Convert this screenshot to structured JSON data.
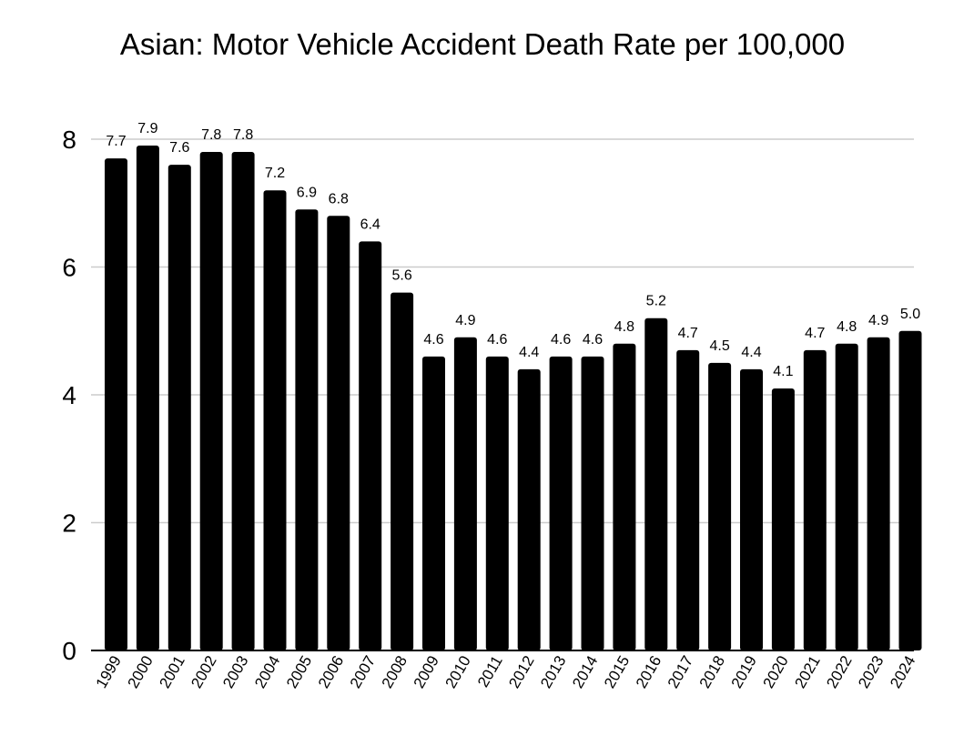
{
  "chart_data": {
    "type": "bar",
    "title": "Asian: Motor Vehicle Accident Death Rate per 100,000",
    "xlabel": "",
    "ylabel": "",
    "categories": [
      "1999",
      "2000",
      "2001",
      "2002",
      "2003",
      "2004",
      "2005",
      "2006",
      "2007",
      "2008",
      "2009",
      "2010",
      "2011",
      "2012",
      "2013",
      "2014",
      "2015",
      "2016",
      "2017",
      "2018",
      "2019",
      "2020",
      "2021",
      "2022",
      "2023",
      "2024"
    ],
    "values": [
      7.7,
      7.9,
      7.6,
      7.8,
      7.8,
      7.2,
      6.9,
      6.8,
      6.4,
      5.6,
      4.6,
      4.9,
      4.6,
      4.4,
      4.6,
      4.6,
      4.8,
      5.2,
      4.7,
      4.5,
      4.4,
      4.1,
      4.7,
      4.8,
      4.9,
      5.0
    ],
    "data_labels": [
      "7.7",
      "7.9",
      "7.6",
      "7.8",
      "7.8",
      "7.2",
      "6.9",
      "6.8",
      "6.4",
      "5.6",
      "4.6",
      "4.9",
      "4.6",
      "4.4",
      "4.6",
      "4.6",
      "4.8",
      "5.2",
      "4.7",
      "4.5",
      "4.4",
      "4.1",
      "4.7",
      "4.8",
      "4.9",
      "5.0"
    ],
    "ylim": [
      0,
      8
    ],
    "yticks": [
      "0",
      "2",
      "4",
      "6",
      "8"
    ],
    "grid": true,
    "bar_color": "#000000",
    "grid_color": "#cccccc"
  }
}
